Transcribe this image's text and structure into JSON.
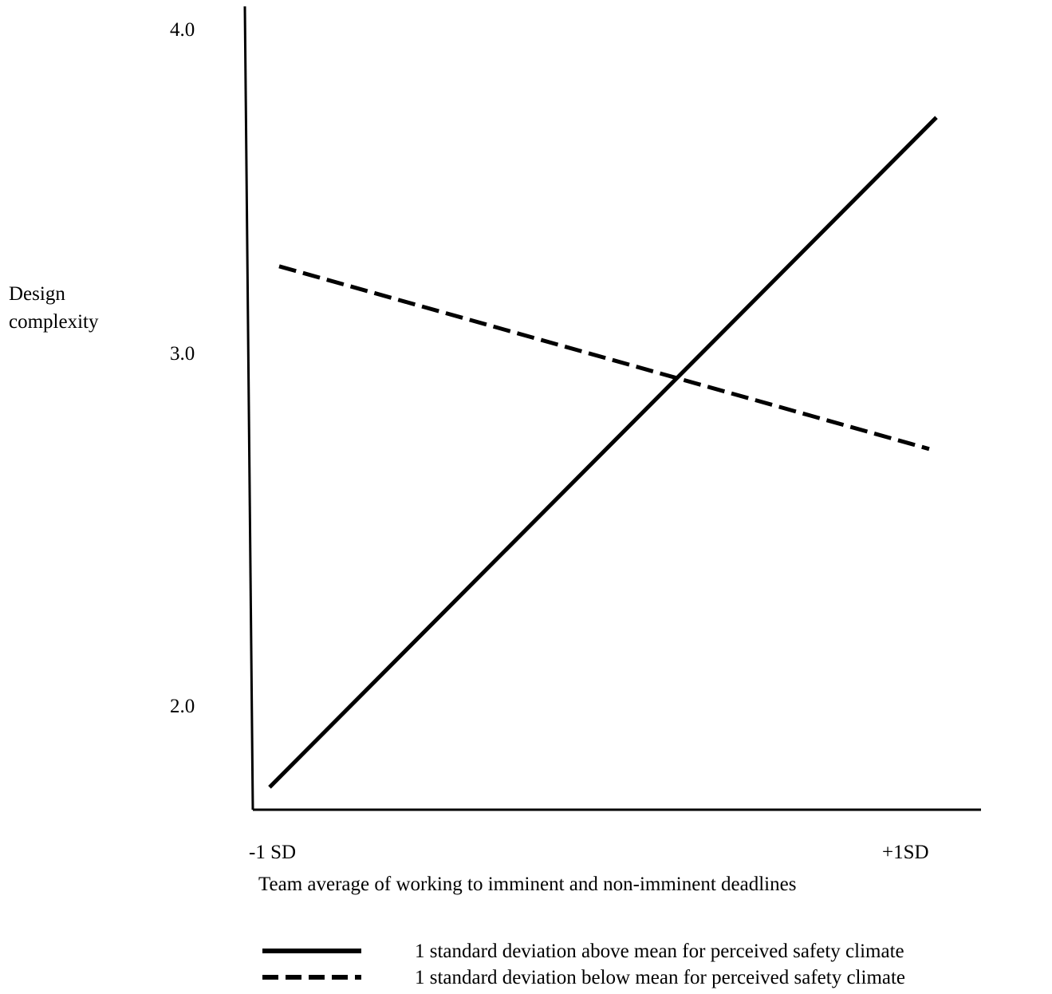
{
  "chart_data": {
    "type": "line",
    "title": "",
    "xlabel": "Team average of working to imminent and non-imminent deadlines",
    "ylabel": "Design complexity",
    "ylabel_lines": [
      "Design",
      "complexity"
    ],
    "categories": [
      "-1 SD",
      "+1SD"
    ],
    "yticks": [
      "4.0",
      "3.0",
      "2.0"
    ],
    "ytick_values": [
      4.0,
      3.0,
      2.0
    ],
    "ylim": [
      1.7,
      4.1
    ],
    "grid": false,
    "legend_position": "bottom",
    "series": [
      {
        "name": "1 standard deviation above mean for perceived safety climate",
        "style": "solid",
        "values": [
          1.76,
          3.74
        ]
      },
      {
        "name": "1 standard deviation below mean for perceived safety climate",
        "style": "dashed",
        "values": [
          3.3,
          2.76
        ]
      }
    ]
  },
  "colors": {
    "line": "#000000",
    "background": "#ffffff"
  }
}
